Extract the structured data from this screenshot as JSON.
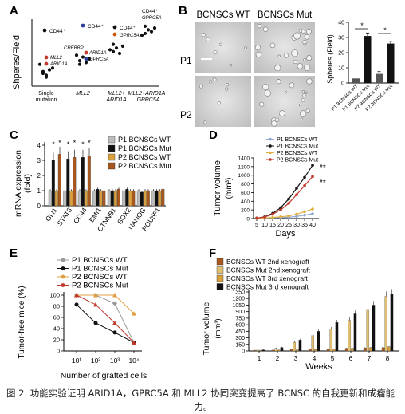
{
  "panel_labels": {
    "A": "A",
    "B": "B",
    "C": "C",
    "D": "D",
    "E": "E",
    "F": "F"
  },
  "panelA": {
    "ylabel": "Shperes/Field",
    "xticks": [
      "Single",
      "mutation",
      "MLL2",
      "MLL2+",
      "ARID1A",
      "MLL2+ARID1A+",
      "GPRC5A"
    ],
    "annotations": {
      "cd44_1": "CD44⁺",
      "mll2": "MLL2",
      "arid1a": "ARID1A",
      "cd44_2": "CD44⁺",
      "crebbp": "CREBBP",
      "arid1a_2": "ARID1A",
      "gprc5a": "GPRC5A",
      "cd44_3": "CD44⁺",
      "gprc5a_2": "GPRC5A",
      "cd44_4": "CD44⁺",
      "gprc5a_3": "GPRC5A"
    },
    "colors": {
      "black": "#111111",
      "red": "#c0392b",
      "blue": "#2c3e9c",
      "orange": "#d35400"
    }
  },
  "panelB": {
    "col_titles": [
      "BCNSCs WT",
      "BCNSCs Mut"
    ],
    "row_labels": [
      "P1",
      "P2"
    ],
    "ylabel": "Spheres (Field)",
    "yticks": [
      "0",
      "10",
      "20",
      "30",
      "40"
    ],
    "xlabels": [
      "P1 BCNSCs WT",
      "P1 BCNSCs Mut",
      "P2 BCNSCs WT",
      "P2 BCNSCs Mut"
    ],
    "star": "*"
  },
  "panelC": {
    "ylabel1": "mRNA expression",
    "ylabel2": "(fold)",
    "yticks": [
      "0",
      "1",
      "2",
      "3",
      "4"
    ],
    "legend": [
      "P1 BCNSCs WT",
      "P1 BCNSCs Mut",
      "P2 BCNSCs WT",
      "P2 BCNSCs Mut"
    ],
    "star": "*"
  },
  "panelD": {
    "ylabel1": "Tumor volume",
    "ylabel2": "(mm³)",
    "xlabel": "Days",
    "yticks": [
      "0",
      "200",
      "400",
      "600",
      "800",
      "1000",
      "1200",
      "1400"
    ],
    "xticks": [
      "5",
      "10",
      "15",
      "20",
      "25",
      "30",
      "35",
      "40"
    ],
    "legend": [
      "P1 BCNSCs WT",
      "P1 BCNSCs Mut",
      "P2 BCNSCs WT",
      "P2 BCNSCs Mut"
    ],
    "sig": "**"
  },
  "panelE": {
    "ylabel": "Tumor-free mice (%)",
    "xlabel": "Number of grafted cells",
    "yticks": [
      "0",
      "20",
      "40",
      "60",
      "80",
      "100"
    ],
    "xticks": [
      "10¹",
      "10²",
      "10³",
      "10⁴"
    ],
    "legend": [
      "P1 BCNSCs WT",
      "P1 BCNSCs Mut",
      "P2 BCNSCs WT",
      "P2 BCNSCs Mut"
    ]
  },
  "panelF": {
    "ylabel1": "Tumor volume",
    "ylabel2": "(mm³)",
    "xlabel": "Weeks",
    "yticks": [
      "0",
      "150",
      "300",
      "450",
      "600",
      "750",
      "900",
      "1050",
      "1200",
      "1350"
    ],
    "xticks": [
      "1",
      "2",
      "3",
      "4",
      "5",
      "6",
      "7",
      "8"
    ],
    "legend": [
      "BCNSCs WT 2nd xenograft",
      "BCNSCs Mut 2nd xenograft",
      "BCNSCs WT 3rd xenograft",
      "BCNSCs Mut 3rd xenograft"
    ]
  },
  "caption": {
    "line1": "图 2. 功能实验证明 ARID1A，GPRC5A 和 MLL2 协同突变提高了 BCNSC 的自我更新和成瘤能",
    "line2": "力。"
  },
  "chart_data": [
    {
      "type": "scatter",
      "categories": [
        "Single mutation",
        "MLL2",
        "MLL2+ARID1A",
        "MLL2+ARID1A+GPRC5A"
      ],
      "ylabel": "Shperes/Field",
      "series": [
        {
          "values": [
            [
              1,
              8
            ],
            [
              1,
              6
            ],
            [
              1,
              9
            ],
            [
              1,
              10
            ],
            [
              1,
              12
            ],
            [
              1,
              7
            ],
            [
              1,
              5
            ],
            [
              1,
              9
            ],
            [
              2,
              14
            ],
            [
              2,
              16
            ],
            [
              2,
              13
            ],
            [
              2,
              15
            ],
            [
              2,
              17
            ],
            [
              2,
              12
            ],
            [
              3,
              19
            ],
            [
              3,
              21
            ],
            [
              3,
              18
            ],
            [
              3,
              22
            ],
            [
              3,
              20
            ],
            [
              3,
              23
            ],
            [
              4,
              29
            ],
            [
              4,
              31
            ],
            [
              4,
              30
            ],
            [
              4,
              32
            ],
            [
              4,
              28
            ],
            [
              4,
              33
            ]
          ]
        }
      ]
    },
    {
      "type": "bar",
      "categories": [
        "P1 BCNSCs WT",
        "P1 BCNSCs Mut",
        "P2 BCNSCs WT",
        "P2 BCNSCs Mut"
      ],
      "values": [
        3,
        31,
        6,
        26
      ],
      "errors": [
        1,
        2,
        1.5,
        1.5
      ],
      "ylabel": "Spheres (Field)",
      "ylim": [
        0,
        40
      ]
    },
    {
      "type": "bar",
      "categories": [
        "GLI1",
        "STAT3",
        "CD44",
        "BMI1",
        "CTNNB1",
        "SOX2",
        "NANOG",
        "POU5F1"
      ],
      "series": [
        {
          "name": "P1 BCNSCs WT",
          "values": [
            1,
            1,
            1,
            1,
            1,
            1,
            1,
            1
          ]
        },
        {
          "name": "P1 BCNSCs Mut",
          "values": [
            3.0,
            3.1,
            3.2,
            1.1,
            1.0,
            1.1,
            0.9,
            1.0
          ]
        },
        {
          "name": "P2 BCNSCs WT",
          "values": [
            1,
            1,
            1,
            1,
            1,
            1,
            1,
            1
          ]
        },
        {
          "name": "P2 BCNSCs Mut",
          "values": [
            3.4,
            3.2,
            3.3,
            1.0,
            1.1,
            1.0,
            1.0,
            1.1
          ]
        }
      ],
      "ylabel": "mRNA expression (fold)",
      "ylim": [
        0,
        4
      ]
    },
    {
      "type": "line",
      "x": [
        5,
        10,
        15,
        20,
        25,
        30,
        35,
        40
      ],
      "series": [
        {
          "name": "P1 BCNSCs WT",
          "values": [
            5,
            10,
            15,
            20,
            30,
            50,
            80,
            110
          ]
        },
        {
          "name": "P1 BCNSCs Mut",
          "values": [
            10,
            40,
            120,
            250,
            450,
            700,
            950,
            1230
          ]
        },
        {
          "name": "P2 BCNSCs WT",
          "values": [
            5,
            15,
            25,
            40,
            60,
            100,
            160,
            220
          ]
        },
        {
          "name": "P2 BCNSCs Mut",
          "values": [
            10,
            35,
            100,
            200,
            350,
            550,
            760,
            970
          ]
        }
      ],
      "xlabel": "Days",
      "ylabel": "Tumor volume (mm³)",
      "ylim": [
        0,
        1400
      ]
    },
    {
      "type": "line",
      "x": [
        1,
        2,
        3,
        4
      ],
      "x_tick_labels": [
        "10¹",
        "10²",
        "10³",
        "10⁴"
      ],
      "series": [
        {
          "name": "P1 BCNSCs WT",
          "values": [
            100,
            100,
            85,
            15
          ]
        },
        {
          "name": "P1 BCNSCs Mut",
          "values": [
            83,
            50,
            33,
            15
          ]
        },
        {
          "name": "P2 BCNSCs WT",
          "values": [
            100,
            100,
            100,
            67
          ]
        },
        {
          "name": "P2 BCNSCs Mut",
          "values": [
            100,
            83,
            50,
            15
          ]
        }
      ],
      "xlabel": "Number of grafted cells",
      "ylabel": "Tumor-free mice (%)",
      "ylim": [
        0,
        100
      ]
    },
    {
      "type": "bar",
      "categories": [
        "1",
        "2",
        "3",
        "4",
        "5",
        "6",
        "7",
        "8"
      ],
      "series": [
        {
          "name": "BCNSCs WT 2nd xenograft",
          "values": [
            15,
            20,
            30,
            40,
            50,
            60,
            70,
            80
          ]
        },
        {
          "name": "BCNSCs Mut 2nd xenograft",
          "values": [
            20,
            60,
            200,
            350,
            500,
            700,
            950,
            1250
          ]
        },
        {
          "name": "BCNSCs WT 3rd xenograft",
          "values": [
            15,
            20,
            25,
            35,
            45,
            60,
            75,
            95
          ]
        },
        {
          "name": "BCNSCs Mut 3rd xenograft",
          "values": [
            25,
            80,
            250,
            450,
            650,
            850,
            1050,
            1300
          ]
        }
      ],
      "xlabel": "Weeks",
      "ylabel": "Tumor volume (mm³)",
      "ylim": [
        0,
        1350
      ]
    }
  ]
}
